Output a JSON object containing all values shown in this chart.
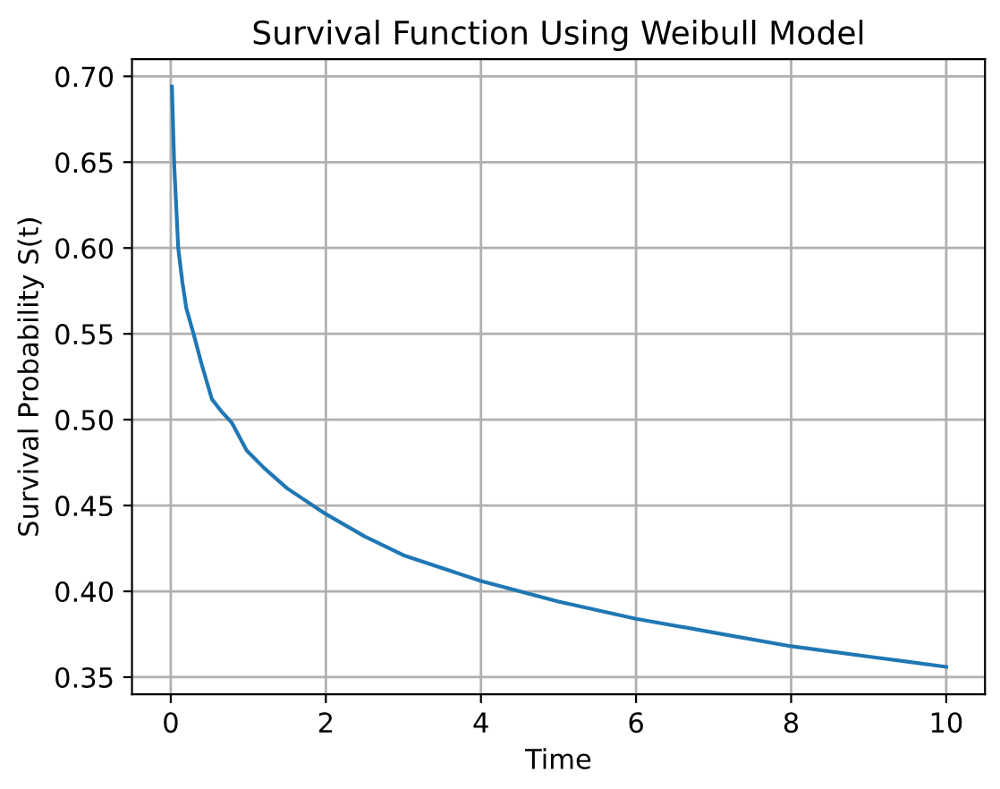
{
  "chart_data": {
    "type": "line",
    "title": "Survival Function Using Weibull Model",
    "xlabel": "Time",
    "ylabel": "Survival Probability S(t)",
    "x": [
      0.015,
      0.044,
      0.096,
      0.15,
      0.2,
      0.3,
      0.4,
      0.53,
      0.65,
      0.79,
      0.98,
      1.2,
      1.5,
      2.0,
      2.5,
      3.0,
      4.0,
      5.0,
      6.0,
      7.0,
      8.0,
      9.0,
      10.0
    ],
    "series": [
      {
        "color": "#1f77b4",
        "values": [
          0.694,
          0.649,
          0.6,
          0.58,
          0.565,
          0.549,
          0.532,
          0.512,
          0.505,
          0.498,
          0.482,
          0.472,
          0.46,
          0.445,
          0.432,
          0.421,
          0.406,
          0.394,
          0.384,
          0.376,
          0.368,
          0.362,
          0.356
        ]
      }
    ],
    "xlim": [
      -0.5,
      10.5
    ],
    "ylim": [
      0.34,
      0.71
    ],
    "xticks": [
      0,
      2,
      4,
      6,
      8,
      10
    ],
    "yticks": [
      {
        "value": 0.35,
        "label": "0.35"
      },
      {
        "value": 0.4,
        "label": "0.40"
      },
      {
        "value": 0.45,
        "label": "0.45"
      },
      {
        "value": 0.5,
        "label": "0.50"
      },
      {
        "value": 0.55,
        "label": "0.55"
      },
      {
        "value": 0.6,
        "label": "0.60"
      },
      {
        "value": 0.65,
        "label": "0.65"
      },
      {
        "value": 0.7,
        "label": "0.70"
      }
    ],
    "grid": true,
    "marker": "none",
    "line_style": "solid"
  }
}
